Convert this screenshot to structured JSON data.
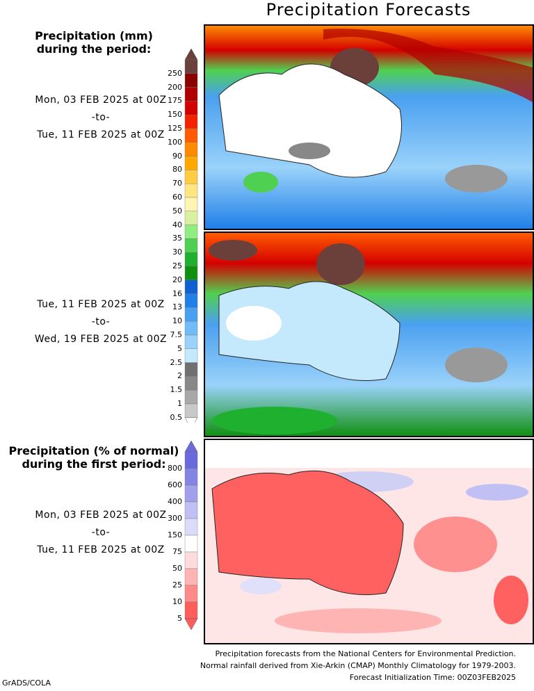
{
  "title": "Precipitation Forecasts",
  "top_legend": {
    "heading_line1": "Precipitation (mm)",
    "heading_line2": "during the period:",
    "scale_labels": [
      "250",
      "200",
      "175",
      "150",
      "125",
      "100",
      "90",
      "80",
      "70",
      "60",
      "50",
      "40",
      "35",
      "30",
      "25",
      "20",
      "16",
      "13",
      "10",
      "7.5",
      "5",
      "2.5",
      "2",
      "1.5",
      "1",
      "0.5"
    ],
    "colors": [
      "#6b3f3a",
      "#8b0000",
      "#b00000",
      "#d40000",
      "#f52200",
      "#ff5a00",
      "#ff8a00",
      "#ffa900",
      "#ffcc44",
      "#ffe680",
      "#fff5b0",
      "#d8f0a0",
      "#90ee80",
      "#50d050",
      "#20b030",
      "#109010",
      "#1060d0",
      "#2080e8",
      "#4aa0f0",
      "#70bcf8",
      "#9ad2fa",
      "#c4e8fc",
      "#707070",
      "#888888",
      "#a8a8a8",
      "#c8c8c8"
    ]
  },
  "period1": {
    "from": "Mon, 03 FEB 2025 at 00Z",
    "to_word": "-to-",
    "to": "Tue, 11 FEB 2025 at 00Z"
  },
  "period2": {
    "from": "Tue, 11 FEB 2025 at 00Z",
    "to_word": "-to-",
    "to": "Wed, 19 FEB 2025 at 00Z"
  },
  "bottom_legend": {
    "heading_line1": "Precipitation (% of normal)",
    "heading_line2": "during the first period:",
    "scale_labels": [
      "800",
      "600",
      "400",
      "300",
      "150",
      "75",
      "50",
      "25",
      "10",
      "5"
    ],
    "colors": [
      "#6a6adc",
      "#8484e4",
      "#a0a0ec",
      "#c0c0f4",
      "#dcdcfa",
      "#ffffff",
      "#ffdcdc",
      "#ffb4b4",
      "#ff8a8a",
      "#ff5c5c"
    ]
  },
  "period3": {
    "from": "Mon, 03 FEB 2025 at 00Z",
    "to_word": "-to-",
    "to": "Tue, 11 FEB 2025 at 00Z"
  },
  "footer": {
    "line1": "Precipitation forecasts from the National Centers for Environmental Prediction.",
    "line2": "Normal rainfall derived from Xie-Arkin (CMAP) Monthly Climatology for 1979-2003.",
    "line3": "Forecast Initialization Time: 00Z03FEB2025"
  },
  "brand": "GrADS/COLA"
}
